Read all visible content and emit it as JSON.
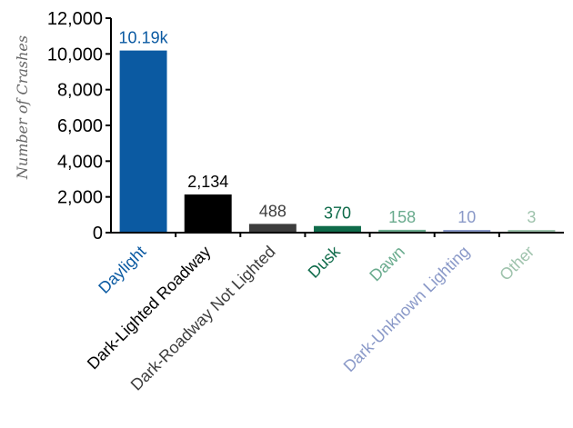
{
  "chart_data": {
    "type": "bar",
    "title": "",
    "xlabel": "",
    "ylabel": "Number of Crashes",
    "ylim": [
      0,
      12000
    ],
    "yticks": [
      0,
      2000,
      4000,
      6000,
      8000,
      10000,
      12000
    ],
    "ytick_labels": [
      "0",
      "2,000",
      "4,000",
      "6,000",
      "8,000",
      "10,000",
      "12,000"
    ],
    "categories": [
      "Daylight",
      "Dark-Lighted Roadway",
      "Dark-Roadway Not Lighted",
      "Dusk",
      "Dawn",
      "Dark-Unknown Lighting",
      "Other"
    ],
    "values": [
      10190,
      2134,
      488,
      370,
      158,
      10,
      3
    ],
    "data_labels": [
      "10.19k",
      "2,134",
      "488",
      "370",
      "158",
      "10",
      "3"
    ],
    "colors": [
      "#0b5aa2",
      "#000000",
      "#3d3d3d",
      "#0f6b4a",
      "#6aab8e",
      "#8a99c8",
      "#9fc3ad"
    ],
    "grid": false,
    "legend": "none"
  }
}
